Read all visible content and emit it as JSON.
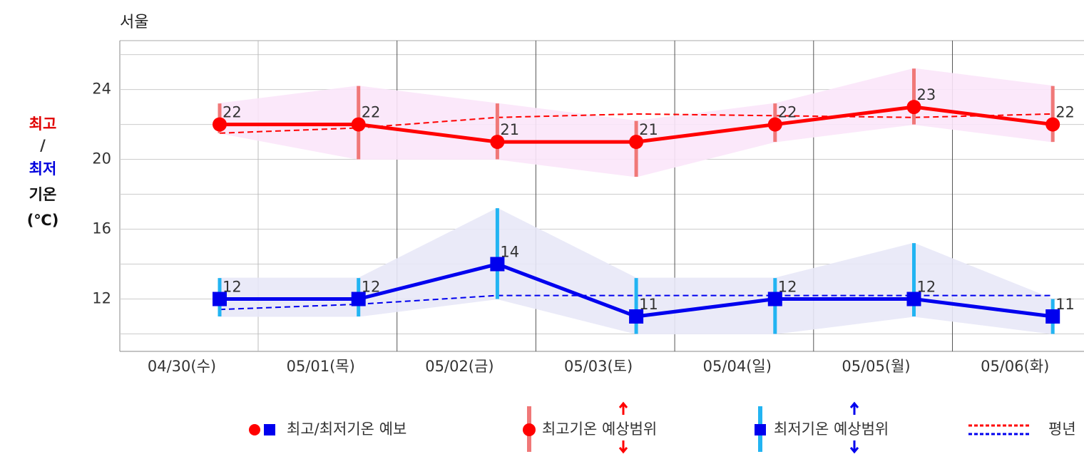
{
  "chart_data": {
    "type": "line",
    "title": "서울",
    "ylabel": [
      "최고",
      "/",
      "최저",
      "기온",
      "(℃)"
    ],
    "categories": [
      "04/30(수)",
      "05/01(목)",
      "05/02(금)",
      "05/03(토)",
      "05/04(일)",
      "05/05(월)",
      "05/06(화)"
    ],
    "ylim": [
      9,
      26.8
    ],
    "yticks": [
      12,
      16,
      20,
      24
    ],
    "yminor": [
      10,
      14,
      18,
      22,
      26
    ],
    "grid": true,
    "series": [
      {
        "color": "#ff0000",
        "range_color": "#f07878",
        "band_color": "#fbe6fa",
        "marker": "circle",
        "values": [
          22,
          22,
          21,
          21,
          22,
          23,
          22
        ],
        "range": [
          [
            21.5,
            23.2
          ],
          [
            20,
            24.2
          ],
          [
            20,
            23.2
          ],
          [
            19,
            22.2
          ],
          [
            21,
            23.2
          ],
          [
            22,
            25.2
          ],
          [
            21,
            24.2
          ]
        ],
        "normal": [
          21.5,
          21.8,
          22.4,
          22.6,
          22.5,
          22.4,
          22.6
        ]
      },
      {
        "color": "#0000ee",
        "range_color": "#22b4f2",
        "band_color": "#e8e8f8",
        "marker": "square",
        "values": [
          12,
          12,
          14,
          11,
          12,
          12,
          11
        ],
        "range": [
          [
            11,
            13.2
          ],
          [
            11,
            13.2
          ],
          [
            12,
            17.2
          ],
          [
            10,
            13.2
          ],
          [
            10,
            13.2
          ],
          [
            11,
            15.2
          ],
          [
            10,
            12
          ]
        ],
        "normal": [
          11.4,
          11.7,
          12.2,
          12.2,
          12.2,
          12.2,
          12.2
        ]
      }
    ],
    "legend": [
      "최고/최저기온 예보",
      "최고기온 예상범위",
      "최저기온 예상범위",
      "평년"
    ]
  }
}
